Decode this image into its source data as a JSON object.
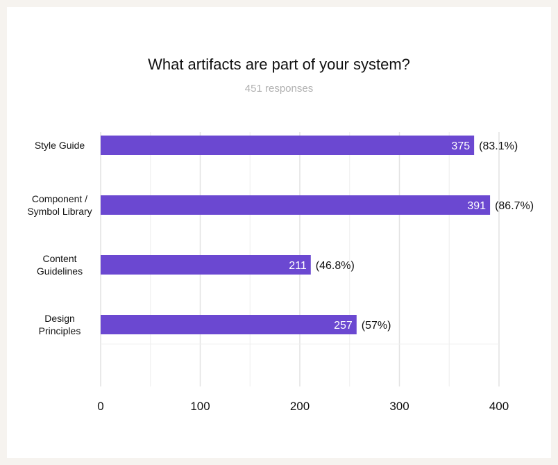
{
  "chart_data": {
    "type": "bar",
    "orientation": "horizontal",
    "title": "What artifacts are part of your system?",
    "subtitle": "451 responses",
    "categories": [
      [
        "Style Guide"
      ],
      [
        "Component /",
        "Symbol Library"
      ],
      [
        "Content",
        "Guidelines"
      ],
      [
        "Design",
        "Principles"
      ]
    ],
    "values": [
      375,
      391,
      211,
      257
    ],
    "value_labels": [
      "375",
      "391",
      "211",
      "257"
    ],
    "percent_labels": [
      "(83.1%)",
      "(86.7%)",
      "(46.8%)",
      "(57%)"
    ],
    "xticks": [
      "0",
      "100",
      "200",
      "300",
      "400"
    ],
    "xlim": [
      0,
      400
    ],
    "grid": true,
    "bar_color": "#6b48d1"
  }
}
